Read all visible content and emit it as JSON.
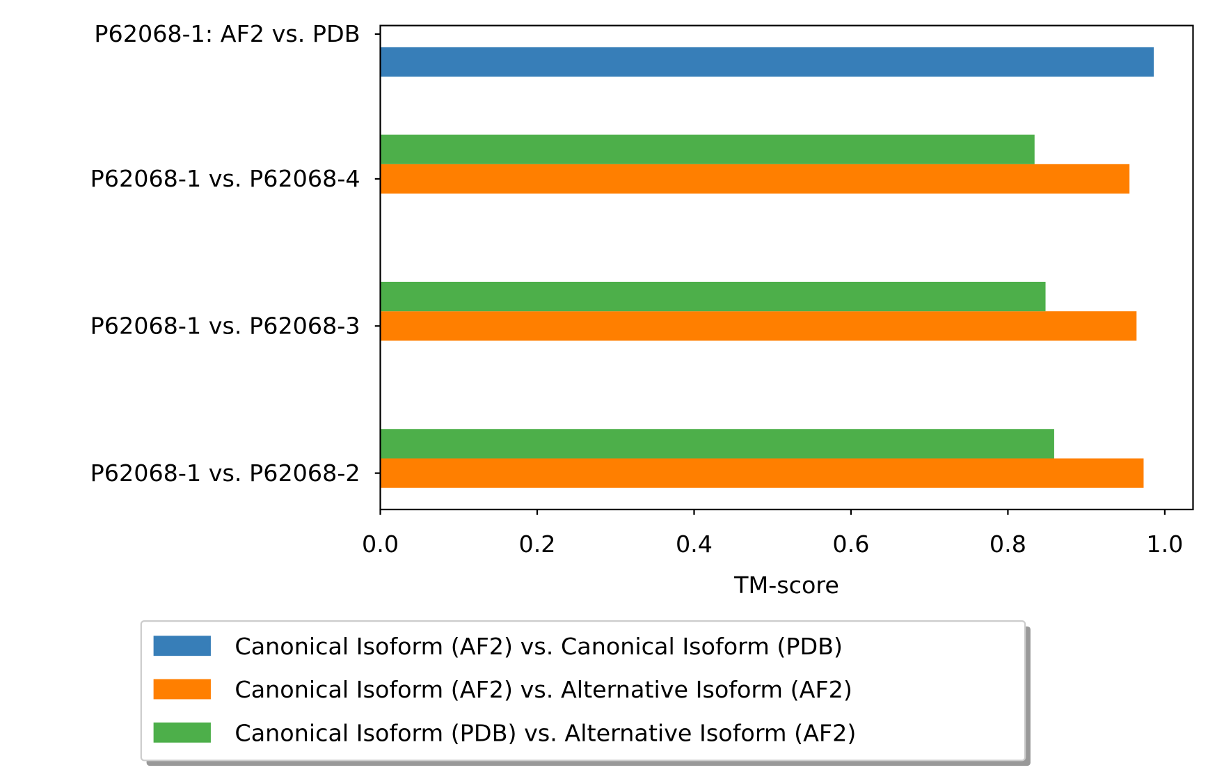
{
  "chart_data": {
    "type": "bar",
    "orientation": "horizontal",
    "categories": [
      "P62068-1: AF2 vs. PDB",
      "P62068-1 vs. P62068-4",
      "P62068-1 vs. P62068-3",
      "P62068-1 vs. P62068-2"
    ],
    "series": [
      {
        "name": "Canonical Isoform (AF2) vs. Canonical Isoform (PDB)",
        "color": "#377eb8",
        "values": [
          0.986,
          null,
          null,
          null
        ]
      },
      {
        "name": "Canonical Isoform (AF2) vs. Alternative Isoform (AF2)",
        "color": "#ff7f00",
        "values": [
          null,
          0.955,
          0.964,
          0.973
        ]
      },
      {
        "name": "Canonical Isoform (PDB) vs. Alternative Isoform (AF2)",
        "color": "#4daf4a",
        "values": [
          null,
          0.834,
          0.848,
          0.859
        ]
      }
    ],
    "xlabel": "TM-score",
    "ylabel": "",
    "xlim": [
      0,
      1.036
    ],
    "xticks": [
      "0.0",
      "0.2",
      "0.4",
      "0.6",
      "0.8",
      "1.0"
    ],
    "grid": false,
    "legend_placement": "bottom-center"
  }
}
